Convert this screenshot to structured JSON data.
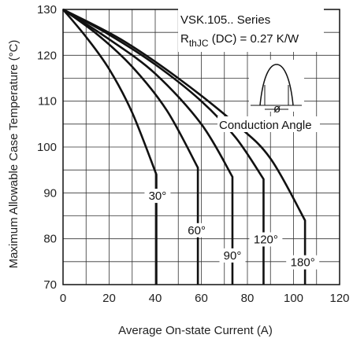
{
  "chart_data": {
    "type": "line",
    "xlabel": "Average On-state Current (A)",
    "ylabel": "Maximum Allowable Case Temperature (°C)",
    "xlim": [
      0,
      120
    ],
    "ylim": [
      70,
      130
    ],
    "xticks": [
      0,
      20,
      40,
      60,
      80,
      100,
      120
    ],
    "yticks": [
      70,
      80,
      90,
      100,
      110,
      120,
      130
    ],
    "x_minor_step": 10,
    "y_minor_step": 5,
    "grid": true,
    "annotations": {
      "series_title": "VSK.105.. Series",
      "rth_symbol": "R",
      "rth_subscript": "thJC",
      "rth_rest": " (DC) = 0.27 K/W",
      "conduction_angle": "Conduction Angle",
      "phi": "ø"
    },
    "series": [
      {
        "label": "30°",
        "x": [
          0,
          10,
          20,
          30,
          40.5,
          40.5
        ],
        "y": [
          130,
          124,
          117,
          107.5,
          94,
          70
        ]
      },
      {
        "label": "60°",
        "x": [
          0,
          15,
          30,
          45,
          58.5,
          58.5
        ],
        "y": [
          130,
          124.5,
          117.5,
          108,
          95.5,
          70
        ]
      },
      {
        "label": "90°",
        "x": [
          0,
          20,
          40,
          60,
          73.5,
          73.5
        ],
        "y": [
          130,
          123.5,
          116,
          105,
          93.5,
          70
        ]
      },
      {
        "label": "120°",
        "x": [
          0,
          20,
          40,
          60,
          75,
          87,
          87
        ],
        "y": [
          130,
          124.5,
          118,
          110,
          102,
          93,
          70
        ]
      },
      {
        "label": "180°",
        "x": [
          0,
          25,
          50,
          75,
          90,
          105,
          105
        ],
        "y": [
          130,
          123.5,
          115,
          105,
          97.5,
          84,
          70
        ]
      }
    ]
  }
}
